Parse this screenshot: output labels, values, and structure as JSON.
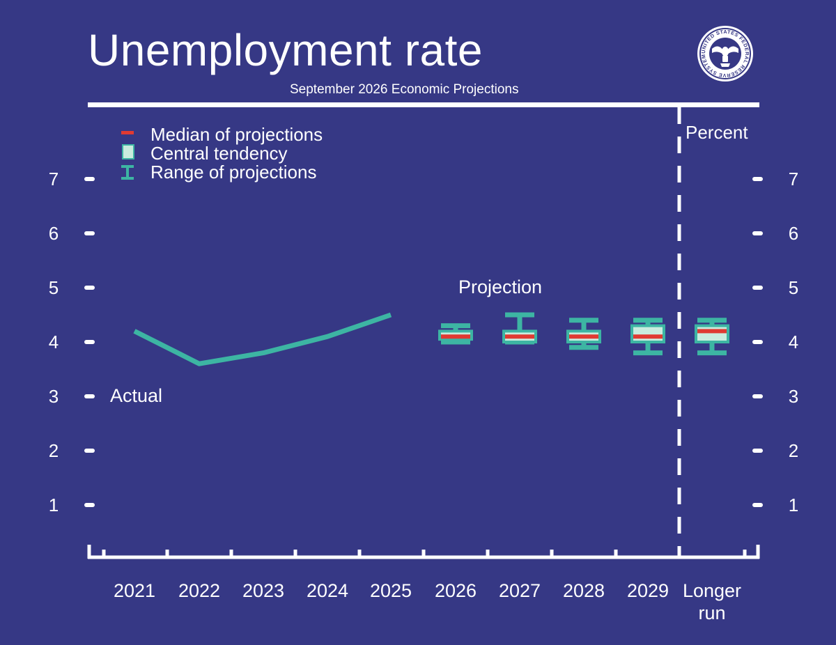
{
  "header": {
    "title": "Unemployment rate",
    "subtitle": "September 2026 Economic Projections",
    "seal_text": "UNITED STATES FEDERAL RESERVE SYSTEM",
    "seal_icon": "federal-reserve-seal-icon"
  },
  "colors": {
    "background": "#363885",
    "actual_line": "#3db5a3",
    "range": "#3db5a3",
    "central_tendency": "#c9ecde",
    "median": "#e03a32"
  },
  "chart_data": {
    "type": "line",
    "unit_label": "Percent",
    "ylim": [
      0,
      7
    ],
    "y_ticks": [
      "1",
      "2",
      "3",
      "4",
      "5",
      "6",
      "7"
    ],
    "categories": [
      "2021",
      "2022",
      "2023",
      "2024",
      "2025",
      "2026",
      "2027",
      "2028",
      "2029",
      "Longer run"
    ],
    "legend": {
      "position": "top-left",
      "items": [
        "Median of projections",
        "Central tendency",
        "Range of projections"
      ]
    },
    "annotations": {
      "actual": "Actual",
      "projection": "Projection"
    },
    "actual": {
      "x": [
        "2021",
        "2022",
        "2023",
        "2024",
        "2025"
      ],
      "values": [
        4.2,
        3.6,
        3.8,
        4.1,
        4.5
      ]
    },
    "projections": [
      {
        "x": "2026",
        "range_low": 4.0,
        "range_high": 4.3,
        "central_low": 4.05,
        "central_high": 4.2,
        "median": 4.1
      },
      {
        "x": "2027",
        "range_low": 4.0,
        "range_high": 4.5,
        "central_low": 4.0,
        "central_high": 4.2,
        "median": 4.1
      },
      {
        "x": "2028",
        "range_low": 3.9,
        "range_high": 4.4,
        "central_low": 4.0,
        "central_high": 4.2,
        "median": 4.1
      },
      {
        "x": "2029",
        "range_low": 3.8,
        "range_high": 4.4,
        "central_low": 4.0,
        "central_high": 4.3,
        "median": 4.1
      },
      {
        "x": "Longer run",
        "range_low": 3.8,
        "range_high": 4.4,
        "central_low": 4.0,
        "central_high": 4.3,
        "median": 4.2
      }
    ]
  }
}
